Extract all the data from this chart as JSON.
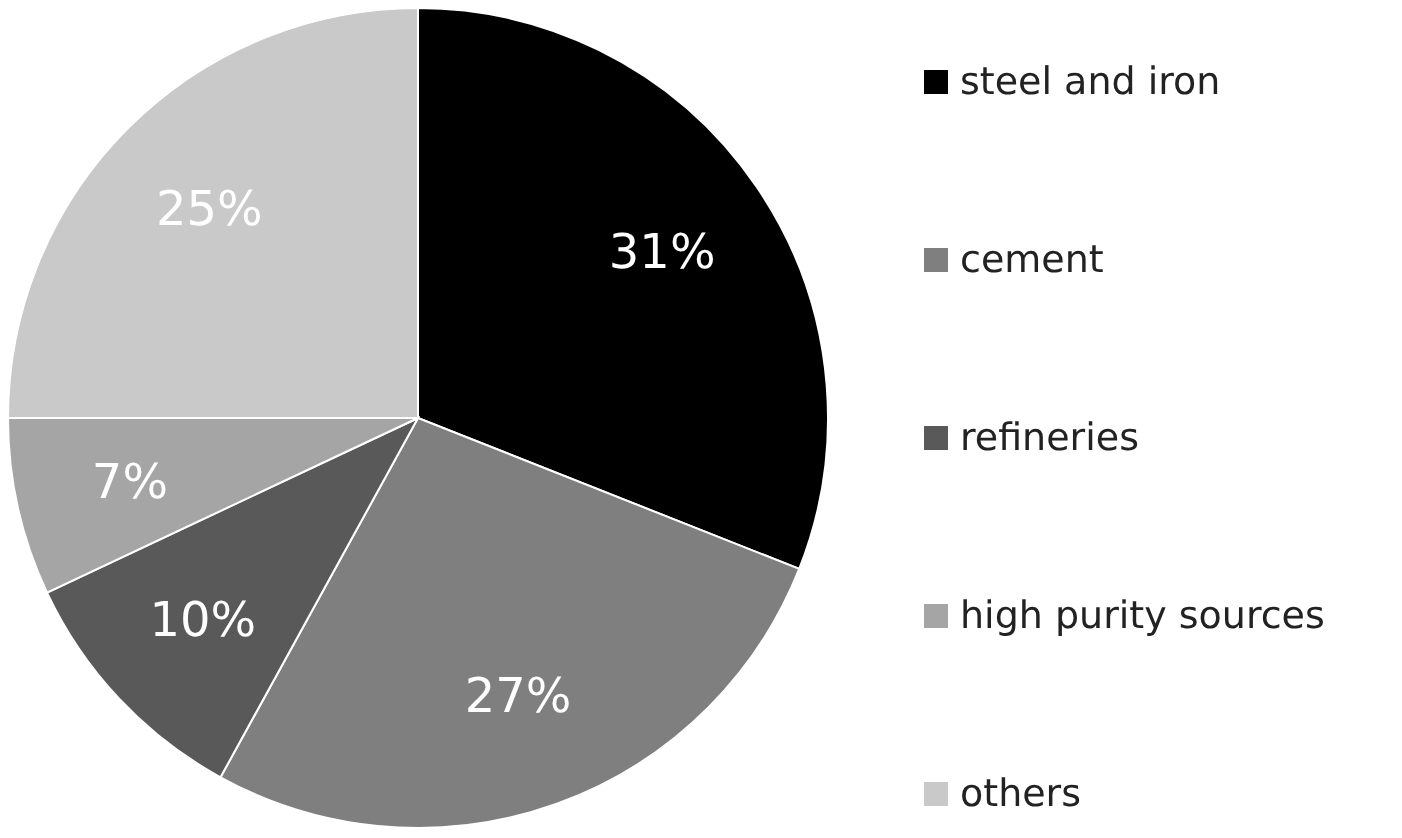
{
  "chart_data": {
    "type": "pie",
    "categories": [
      "steel and iron",
      "cement",
      "refineries",
      "high purity sources",
      "others"
    ],
    "values": [
      31,
      27,
      10,
      7,
      25
    ],
    "colors": [
      "#000000",
      "#7f7f7f",
      "#595959",
      "#a5a5a5",
      "#c9c9c9"
    ],
    "value_labels": [
      "31%",
      "27%",
      "10%",
      "7%",
      "25%"
    ],
    "legend": "right"
  }
}
